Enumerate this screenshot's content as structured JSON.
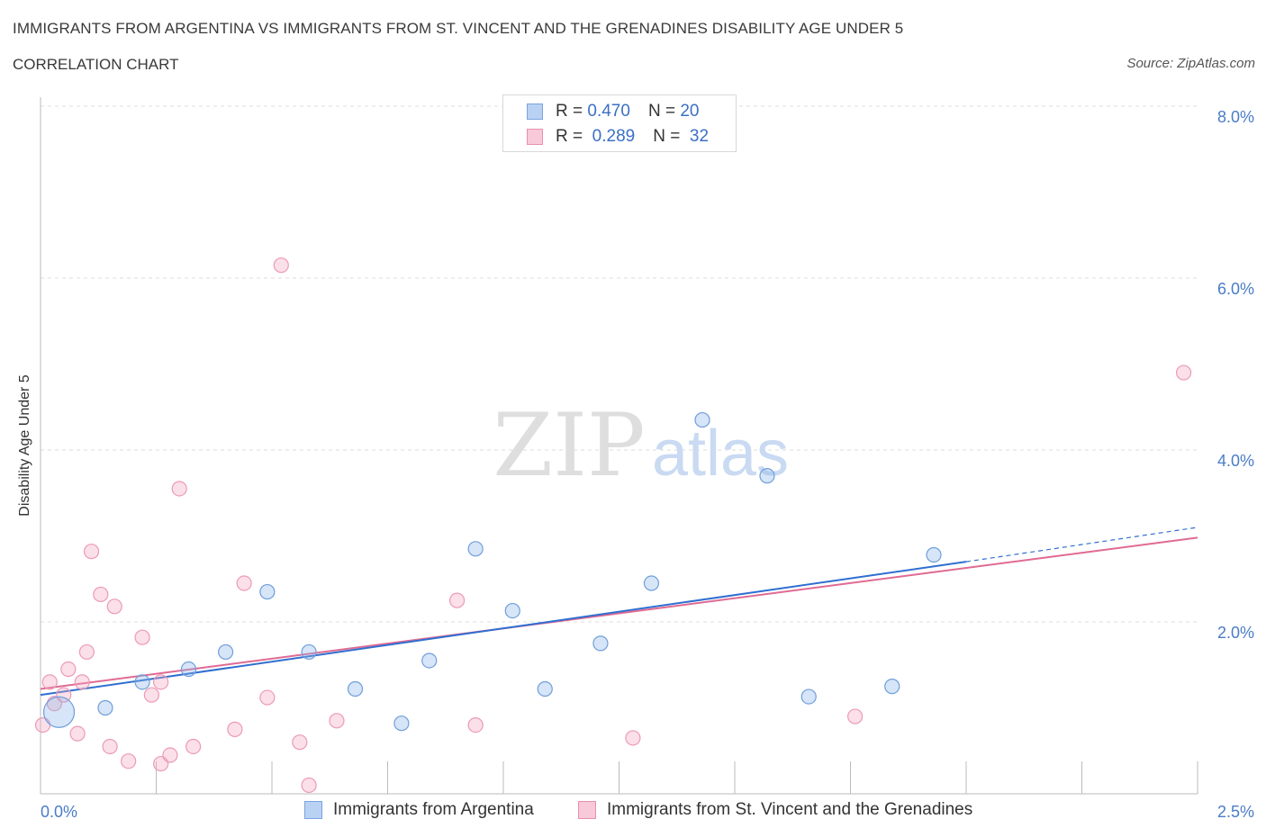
{
  "header": {
    "title": "IMMIGRANTS FROM ARGENTINA VS IMMIGRANTS FROM ST. VINCENT AND THE GRENADINES DISABILITY AGE UNDER 5",
    "subtitle": "CORRELATION CHART",
    "source": "Source: ZipAtlas.com"
  },
  "watermark": {
    "zip": "ZIP",
    "atlas": "atlas"
  },
  "legend": {
    "rows": [
      {
        "r_label": "R =",
        "r_value": "0.470",
        "n_label": "N =",
        "n_value": "20"
      },
      {
        "r_label": "R =",
        "r_value": "0.289",
        "n_label": "N =",
        "n_value": "32"
      }
    ]
  },
  "chart_data": {
    "type": "scatter",
    "title": "IMMIGRANTS FROM ARGENTINA VS IMMIGRANTS FROM ST. VINCENT AND THE GRENADINES DISABILITY AGE UNDER 5",
    "subtitle": "CORRELATION CHART",
    "xlabel": "",
    "ylabel": "Disability Age Under 5",
    "xlim": [
      0,
      2.5
    ],
    "ylim": [
      0,
      8.0
    ],
    "x_tick_labels": [
      "0.0%",
      "2.5%"
    ],
    "y_tick_labels": [
      "2.0%",
      "4.0%",
      "6.0%",
      "8.0%"
    ],
    "y_ticks": [
      2.0,
      4.0,
      6.0,
      8.0
    ],
    "grid": true,
    "legend_position": "top-center",
    "series": [
      {
        "name": "Immigrants from Argentina",
        "color": "#8ab4e8",
        "line_color": "#2f6fd0",
        "r": 0.47,
        "n": 20,
        "trend": {
          "x": [
            0.0,
            2.0
          ],
          "y": [
            1.15,
            2.7
          ],
          "dashed_to": [
            2.5,
            3.1
          ]
        },
        "points": [
          {
            "x": 0.04,
            "y": 0.95,
            "big": true
          },
          {
            "x": 0.14,
            "y": 1.0
          },
          {
            "x": 0.22,
            "y": 1.3
          },
          {
            "x": 0.32,
            "y": 1.45
          },
          {
            "x": 0.4,
            "y": 1.65
          },
          {
            "x": 0.49,
            "y": 2.35
          },
          {
            "x": 0.58,
            "y": 1.65
          },
          {
            "x": 0.68,
            "y": 1.22
          },
          {
            "x": 0.78,
            "y": 0.82
          },
          {
            "x": 0.84,
            "y": 1.55
          },
          {
            "x": 0.94,
            "y": 2.85
          },
          {
            "x": 1.02,
            "y": 2.13
          },
          {
            "x": 1.09,
            "y": 1.22
          },
          {
            "x": 1.21,
            "y": 1.75
          },
          {
            "x": 1.32,
            "y": 2.45
          },
          {
            "x": 1.43,
            "y": 4.35
          },
          {
            "x": 1.57,
            "y": 3.7
          },
          {
            "x": 1.66,
            "y": 1.13
          },
          {
            "x": 1.84,
            "y": 1.25
          },
          {
            "x": 1.93,
            "y": 2.78
          }
        ]
      },
      {
        "name": "Immigrants from St. Vincent and the Grenadines",
        "color": "#f4a6bf",
        "line_color": "#e06a93",
        "r": 0.289,
        "n": 32,
        "trend": {
          "x": [
            0.0,
            2.5
          ],
          "y": [
            1.22,
            2.98
          ]
        },
        "points": [
          {
            "x": 0.005,
            "y": 0.8
          },
          {
            "x": 0.02,
            "y": 1.3
          },
          {
            "x": 0.03,
            "y": 1.05
          },
          {
            "x": 0.05,
            "y": 1.15
          },
          {
            "x": 0.06,
            "y": 1.45
          },
          {
            "x": 0.08,
            "y": 0.7
          },
          {
            "x": 0.09,
            "y": 1.3
          },
          {
            "x": 0.1,
            "y": 1.65
          },
          {
            "x": 0.11,
            "y": 2.82
          },
          {
            "x": 0.13,
            "y": 2.32
          },
          {
            "x": 0.15,
            "y": 0.55
          },
          {
            "x": 0.16,
            "y": 2.18
          },
          {
            "x": 0.19,
            "y": 0.38
          },
          {
            "x": 0.22,
            "y": 1.82
          },
          {
            "x": 0.24,
            "y": 1.15
          },
          {
            "x": 0.26,
            "y": 1.3
          },
          {
            "x": 0.26,
            "y": 0.35
          },
          {
            "x": 0.28,
            "y": 0.45
          },
          {
            "x": 0.3,
            "y": 3.55
          },
          {
            "x": 0.33,
            "y": 0.55
          },
          {
            "x": 0.42,
            "y": 0.75
          },
          {
            "x": 0.44,
            "y": 2.45
          },
          {
            "x": 0.49,
            "y": 1.12
          },
          {
            "x": 0.52,
            "y": 6.15
          },
          {
            "x": 0.56,
            "y": 0.6
          },
          {
            "x": 0.58,
            "y": 0.1
          },
          {
            "x": 0.64,
            "y": 0.85
          },
          {
            "x": 0.9,
            "y": 2.25
          },
          {
            "x": 0.94,
            "y": 0.8
          },
          {
            "x": 1.28,
            "y": 0.65
          },
          {
            "x": 1.76,
            "y": 0.9
          },
          {
            "x": 2.47,
            "y": 4.9
          }
        ]
      }
    ]
  }
}
